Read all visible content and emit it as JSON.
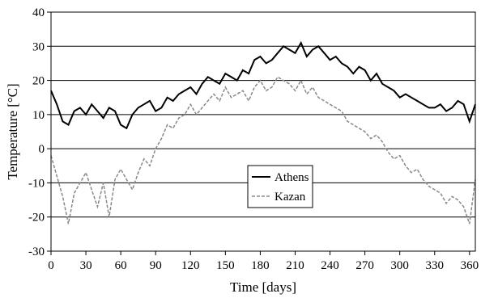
{
  "chart_data": {
    "type": "line",
    "xlabel": "Time [days]",
    "ylabel": "Temperature [°C]",
    "xlim": [
      0,
      365
    ],
    "ylim": [
      -30,
      40
    ],
    "x_ticks": [
      0,
      30,
      60,
      90,
      120,
      150,
      180,
      210,
      240,
      270,
      300,
      330,
      360
    ],
    "y_ticks": [
      -30,
      -20,
      -10,
      0,
      10,
      20,
      30,
      40
    ],
    "grid": "horizontal",
    "legend_position": "center",
    "series": [
      {
        "name": "Athens",
        "style": "solid",
        "color": "#000000",
        "x": [
          0,
          5,
          10,
          15,
          20,
          25,
          30,
          35,
          40,
          45,
          50,
          55,
          60,
          65,
          70,
          75,
          80,
          85,
          90,
          95,
          100,
          105,
          110,
          115,
          120,
          125,
          130,
          135,
          140,
          145,
          150,
          155,
          160,
          165,
          170,
          175,
          180,
          185,
          190,
          195,
          200,
          205,
          210,
          215,
          220,
          225,
          230,
          235,
          240,
          245,
          250,
          255,
          260,
          265,
          270,
          275,
          280,
          285,
          290,
          295,
          300,
          305,
          310,
          315,
          320,
          325,
          330,
          335,
          340,
          345,
          350,
          355,
          360,
          365
        ],
        "y": [
          17,
          13,
          8,
          7,
          11,
          12,
          10,
          13,
          11,
          9,
          12,
          11,
          7,
          6,
          10,
          12,
          13,
          14,
          11,
          12,
          15,
          14,
          16,
          17,
          18,
          16,
          19,
          21,
          20,
          19,
          22,
          21,
          20,
          23,
          22,
          26,
          27,
          25,
          26,
          28,
          30,
          29,
          28,
          31,
          27,
          29,
          30,
          28,
          26,
          27,
          25,
          24,
          22,
          24,
          23,
          20,
          22,
          19,
          18,
          17,
          15,
          16,
          15,
          14,
          13,
          12,
          12,
          13,
          11,
          12,
          14,
          13,
          8,
          13
        ]
      },
      {
        "name": "Kazan",
        "style": "dashed",
        "color": "#888888",
        "x": [
          0,
          5,
          10,
          15,
          20,
          25,
          30,
          35,
          40,
          45,
          50,
          55,
          60,
          65,
          70,
          75,
          80,
          85,
          90,
          95,
          100,
          105,
          110,
          115,
          120,
          125,
          130,
          135,
          140,
          145,
          150,
          155,
          160,
          165,
          170,
          175,
          180,
          185,
          190,
          195,
          200,
          205,
          210,
          215,
          220,
          225,
          230,
          235,
          240,
          245,
          250,
          255,
          260,
          265,
          270,
          275,
          280,
          285,
          290,
          295,
          300,
          305,
          310,
          315,
          320,
          325,
          330,
          335,
          340,
          345,
          350,
          355,
          360,
          365
        ],
        "y": [
          -2,
          -8,
          -14,
          -22,
          -13,
          -10,
          -7,
          -12,
          -17,
          -10,
          -20,
          -9,
          -6,
          -9,
          -12,
          -7,
          -3,
          -5,
          0,
          3,
          7,
          6,
          9,
          10,
          13,
          10,
          12,
          14,
          16,
          14,
          18,
          15,
          16,
          17,
          14,
          18,
          20,
          17,
          18,
          21,
          20,
          19,
          17,
          20,
          16,
          18,
          15,
          14,
          13,
          12,
          11,
          8,
          7,
          6,
          5,
          3,
          4,
          2,
          -1,
          -3,
          -2,
          -5,
          -7,
          -6,
          -9,
          -11,
          -12,
          -13,
          -16,
          -14,
          -15,
          -17,
          -22,
          -9
        ]
      }
    ]
  }
}
